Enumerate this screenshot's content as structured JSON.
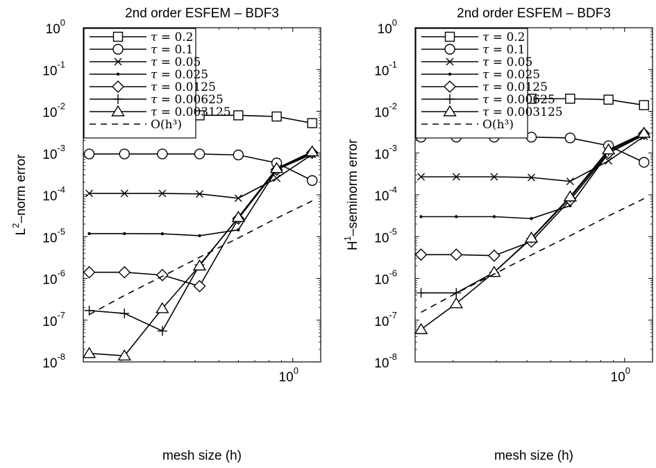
{
  "figure": {
    "background": "#ffffff",
    "line_color": "#000000"
  },
  "chart_data": [
    {
      "type": "line",
      "title": "2nd order ESFEM – BDF3",
      "xlabel": "mesh size (h)",
      "ylabel_main": "L",
      "ylabel_sup": "2",
      "ylabel_rest": "–norm error",
      "xscale": "log",
      "yscale": "log",
      "xlim": [
        0.14,
        1.3
      ],
      "ylim": [
        1e-08,
        1
      ],
      "yticks": [
        {
          "base": "10",
          "exp": "0",
          "value": 1
        },
        {
          "base": "10",
          "exp": "-1",
          "value": 0.1
        },
        {
          "base": "10",
          "exp": "-2",
          "value": 0.01
        },
        {
          "base": "10",
          "exp": "-3",
          "value": 0.001
        },
        {
          "base": "10",
          "exp": "-4",
          "value": 0.0001
        },
        {
          "base": "10",
          "exp": "-5",
          "value": 1e-05
        },
        {
          "base": "10",
          "exp": "-6",
          "value": 1e-06
        },
        {
          "base": "10",
          "exp": "-7",
          "value": 1e-07
        },
        {
          "base": "10",
          "exp": "-8",
          "value": 1e-08
        }
      ],
      "xticks": [
        {
          "base": "10",
          "exp": "0",
          "value": 1
        }
      ],
      "legend_position": "top-left",
      "x": [
        0.148,
        0.206,
        0.294,
        0.417,
        0.6,
        0.86,
        1.2
      ],
      "series": [
        {
          "name": "τ = 0.2",
          "marker": "square",
          "values": [
            0.008,
            0.008,
            0.008,
            0.008,
            0.008,
            0.0075,
            0.0052
          ]
        },
        {
          "name": "τ = 0.1",
          "marker": "circle",
          "values": [
            0.00095,
            0.00095,
            0.00095,
            0.00095,
            0.0009,
            0.00058,
            0.00022
          ]
        },
        {
          "name": "τ = 0.05",
          "marker": "x",
          "values": [
            0.000108,
            0.000108,
            0.000108,
            0.000105,
            8.3e-05,
            0.00025,
            0.00093
          ]
        },
        {
          "name": "τ = 0.025",
          "marker": "dot",
          "values": [
            1.18e-05,
            1.18e-05,
            1.17e-05,
            1.05e-05,
            1.45e-05,
            0.0004,
            0.00095
          ]
        },
        {
          "name": "τ = 0.0125",
          "marker": "diamond",
          "values": [
            1.4e-06,
            1.4e-06,
            1.2e-06,
            6.5e-07,
            2.7e-05,
            0.0004,
            0.00102
          ]
        },
        {
          "name": "τ = 0.00625",
          "marker": "plus",
          "values": [
            1.7e-07,
            1.45e-07,
            5.5e-08,
            2.1e-06,
            2.8e-05,
            0.00042,
            0.00105
          ]
        },
        {
          "name": "τ = 0.003125",
          "marker": "triangle",
          "values": [
            1.6e-08,
            1.4e-08,
            1.9e-07,
            2e-06,
            2.9e-05,
            0.00043,
            0.00108
          ]
        },
        {
          "name": "O(h³)",
          "marker": "none",
          "dashed": true,
          "values": [
            1.36e-07,
            3.9e-07,
            1.12e-06,
            3.21e-06,
            9.26e-06,
            2.76e-05,
            7.16e-05
          ]
        }
      ]
    },
    {
      "type": "line",
      "title": "2nd order ESFEM – BDF3",
      "xlabel": "mesh size (h)",
      "ylabel_main": "H",
      "ylabel_sup": "1",
      "ylabel_rest": "–seminorm error",
      "xscale": "log",
      "yscale": "log",
      "xlim": [
        0.14,
        1.3
      ],
      "ylim": [
        1e-08,
        1
      ],
      "yticks": [
        {
          "base": "10",
          "exp": "0",
          "value": 1
        },
        {
          "base": "10",
          "exp": "-1",
          "value": 0.1
        },
        {
          "base": "10",
          "exp": "-2",
          "value": 0.01
        },
        {
          "base": "10",
          "exp": "-3",
          "value": 0.001
        },
        {
          "base": "10",
          "exp": "-4",
          "value": 0.0001
        },
        {
          "base": "10",
          "exp": "-5",
          "value": 1e-05
        },
        {
          "base": "10",
          "exp": "-6",
          "value": 1e-06
        },
        {
          "base": "10",
          "exp": "-7",
          "value": 1e-07
        },
        {
          "base": "10",
          "exp": "-8",
          "value": 1e-08
        }
      ],
      "xticks": [
        {
          "base": "10",
          "exp": "0",
          "value": 1
        }
      ],
      "legend_position": "top-left",
      "x": [
        0.148,
        0.206,
        0.294,
        0.417,
        0.6,
        0.86,
        1.2
      ],
      "series": [
        {
          "name": "τ = 0.2",
          "marker": "square",
          "values": [
            0.02,
            0.02,
            0.02,
            0.02,
            0.02,
            0.019,
            0.014
          ]
        },
        {
          "name": "τ = 0.1",
          "marker": "circle",
          "values": [
            0.0024,
            0.0024,
            0.0024,
            0.0024,
            0.0023,
            0.0015,
            0.0006
          ]
        },
        {
          "name": "τ = 0.05",
          "marker": "x",
          "values": [
            0.00027,
            0.00027,
            0.00027,
            0.00026,
            0.00021,
            0.00065,
            0.0025
          ]
        },
        {
          "name": "τ = 0.025",
          "marker": "dot",
          "values": [
            3e-05,
            3e-05,
            3e-05,
            2.7e-05,
            5.5e-05,
            0.001,
            0.0027
          ]
        },
        {
          "name": "τ = 0.0125",
          "marker": "diamond",
          "values": [
            3.7e-06,
            3.7e-06,
            3.5e-06,
            7.6e-06,
            7.5e-05,
            0.001,
            0.0029
          ]
        },
        {
          "name": "τ = 0.00625",
          "marker": "plus",
          "values": [
            4.5e-07,
            4.5e-07,
            1.4e-06,
            9e-06,
            8.5e-05,
            0.0011,
            0.003
          ]
        },
        {
          "name": "τ = 0.003125",
          "marker": "triangle",
          "values": [
            6e-08,
            2.5e-07,
            1.4e-06,
            9.3e-06,
            9e-05,
            0.0012,
            0.003
          ]
        },
        {
          "name": "O(h³)",
          "marker": "none",
          "dashed": true,
          "values": [
            1.54e-07,
            4.42e-07,
            1.27e-06,
            3.64e-06,
            1.05e-05,
            3.12e-05,
            8.11e-05
          ]
        }
      ]
    }
  ]
}
